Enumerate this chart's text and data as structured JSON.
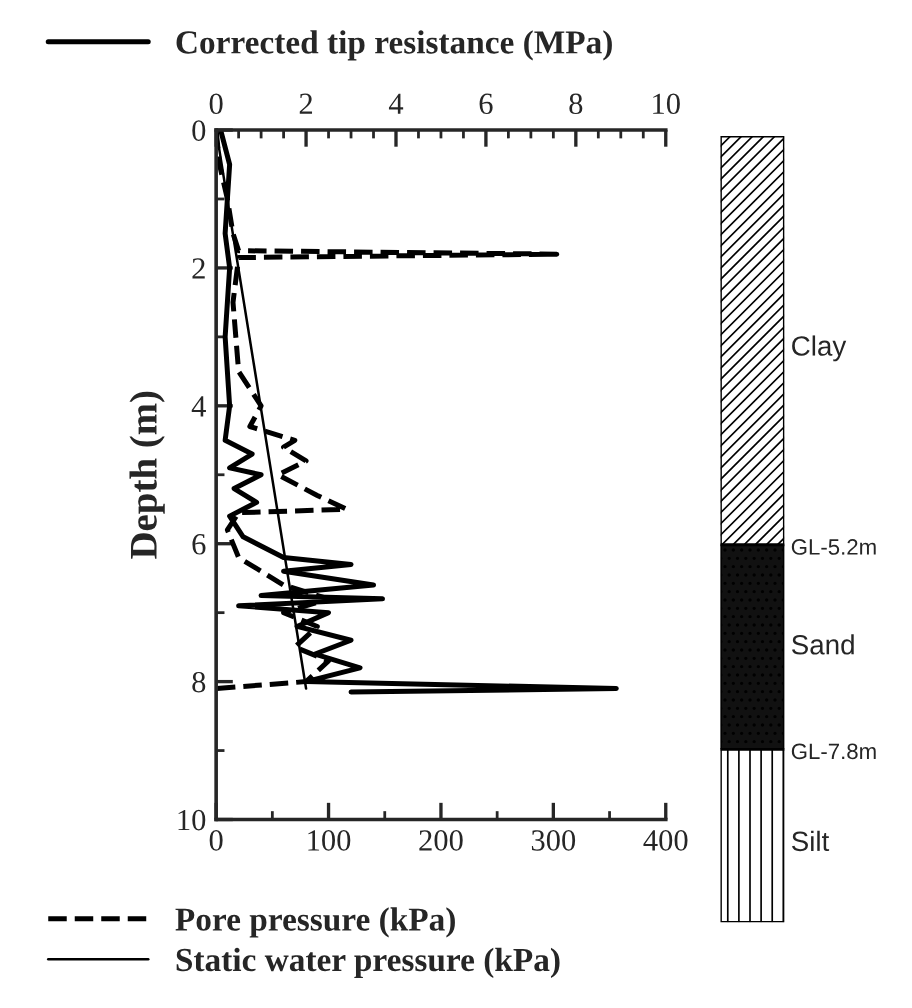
{
  "chart_data": [
    {
      "type": "line",
      "ylabel": "Depth (m)",
      "legend": "left",
      "xlim": [
        0,
        400
      ],
      "xticks": [
        0,
        {
          "value": 50,
          "label": null
        },
        100,
        {
          "value": 150,
          "label": null
        },
        200,
        {
          "value": 250,
          "label": null
        },
        300,
        {
          "value": 350,
          "label": null
        },
        400
      ],
      "x2lim": [
        0,
        10
      ],
      "x2ticks": [
        0,
        {
          "value": 0.5,
          "label": null
        },
        {
          "value": 1,
          "label": null
        },
        {
          "value": 1.5,
          "label": null
        },
        2,
        {
          "value": 2.5,
          "label": null
        },
        {
          "value": 3,
          "label": null
        },
        {
          "value": 3.5,
          "label": null
        },
        4,
        {
          "value": 4.5,
          "label": null
        },
        {
          "value": 5,
          "label": null
        },
        {
          "value": 5.5,
          "label": null
        },
        6,
        {
          "value": 6.5,
          "label": null
        },
        {
          "value": 7,
          "label": null
        },
        {
          "value": 7.5,
          "label": null
        },
        8,
        {
          "value": 8.5,
          "label": null
        },
        {
          "value": 9,
          "label": null
        },
        {
          "value": 9.5,
          "label": null
        },
        10
      ],
      "ylim": [
        10,
        0
      ],
      "yticks": [
        0,
        {
          "value": 1,
          "label": null
        },
        2,
        {
          "value": 3,
          "label": null
        },
        4,
        {
          "value": 5,
          "label": null
        },
        6,
        {
          "value": 7,
          "label": null
        },
        8,
        {
          "value": 9,
          "label": null
        },
        10
      ],
      "series": [
        {
          "name": "Corrected tip resistance (MPa)",
          "axis": "x2",
          "line_style": "solid",
          "color": "#000000",
          "x": [
            0.1,
            0.3,
            0.2,
            0.3,
            0.2,
            0.3,
            0.2,
            0.8,
            0.3,
            1.0,
            0.4,
            0.9,
            0.3,
            0.6,
            1.5,
            3.0,
            1.5,
            3.5,
            1.0,
            3.7,
            0.5,
            2.5,
            1.8,
            3.0,
            2.2,
            3.2,
            2.0,
            8.9,
            3.0
          ],
          "values": [
            0,
            0.5,
            1.5,
            2,
            3,
            4,
            4.5,
            4.7,
            4.9,
            5.0,
            5.2,
            5.4,
            5.6,
            5.9,
            6.2,
            6.3,
            6.4,
            6.6,
            6.75,
            6.8,
            6.9,
            7.0,
            7.2,
            7.4,
            7.6,
            7.8,
            8.0,
            8.1,
            8.15
          ]
        },
        {
          "name": "Pore pressure (kPa)",
          "line_style": "dashed",
          "color": "#000000",
          "x": [
            0,
            3,
            10,
            15,
            20,
            303,
            20,
            15,
            20,
            40,
            30,
            70,
            60,
            80,
            55,
            90,
            116,
            20,
            10,
            20,
            40,
            60,
            100,
            60,
            90,
            70,
            100,
            80,
            0
          ],
          "values": [
            0,
            0.5,
            1.0,
            1.5,
            1.75,
            1.8,
            1.85,
            2.5,
            3.5,
            4.0,
            4.3,
            4.5,
            4.6,
            4.8,
            5.0,
            5.3,
            5.5,
            5.55,
            5.8,
            6.2,
            6.4,
            6.6,
            6.8,
            7.0,
            7.2,
            7.5,
            7.7,
            8.0,
            8.1
          ]
        },
        {
          "name": "Static water pressure (kPa)",
          "line_style": "solid",
          "color": "#000000",
          "x": [
            0,
            80
          ],
          "values": [
            0,
            8.1
          ]
        }
      ]
    },
    {
      "type": "other",
      "annotations": [
        "Clay",
        "GL-5.2m",
        "Sand",
        "GL-7.8m",
        "Silt"
      ]
    }
  ]
}
